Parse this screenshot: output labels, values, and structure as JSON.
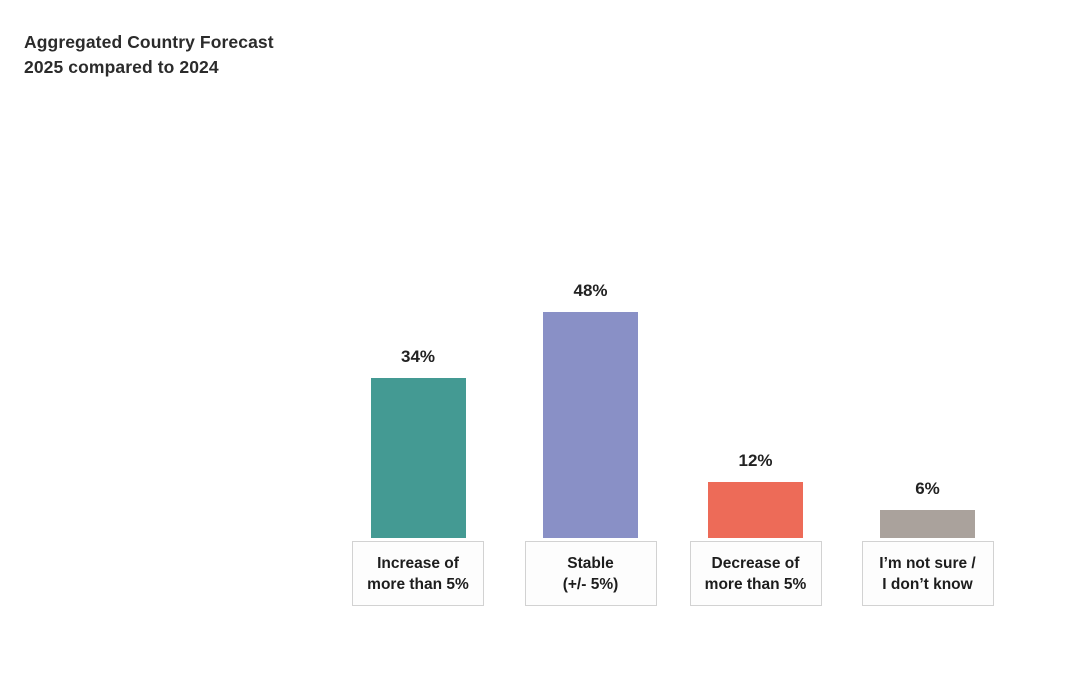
{
  "title": {
    "line1": "Aggregated Country Forecast",
    "line2": "2025 compared to 2024"
  },
  "chart_data": {
    "type": "bar",
    "title": "Aggregated Country Forecast 2025 compared to 2024",
    "categories": [
      "Increase of\nmore than 5%",
      "Stable\n(+/- 5%)",
      "Decrease of\nmore than 5%",
      "I’m not sure /\nI don’t know"
    ],
    "values": [
      34,
      48,
      12,
      6
    ],
    "value_labels": [
      "34%",
      "48%",
      "12%",
      "6%"
    ],
    "colors": [
      "#449a93",
      "#8990c6",
      "#ed6b58",
      "#aaa29c"
    ],
    "xlabel": "",
    "ylabel": "",
    "ylim": [
      0,
      50
    ],
    "grid": false,
    "axes_visible": false,
    "legend": "none",
    "unit": "%"
  }
}
